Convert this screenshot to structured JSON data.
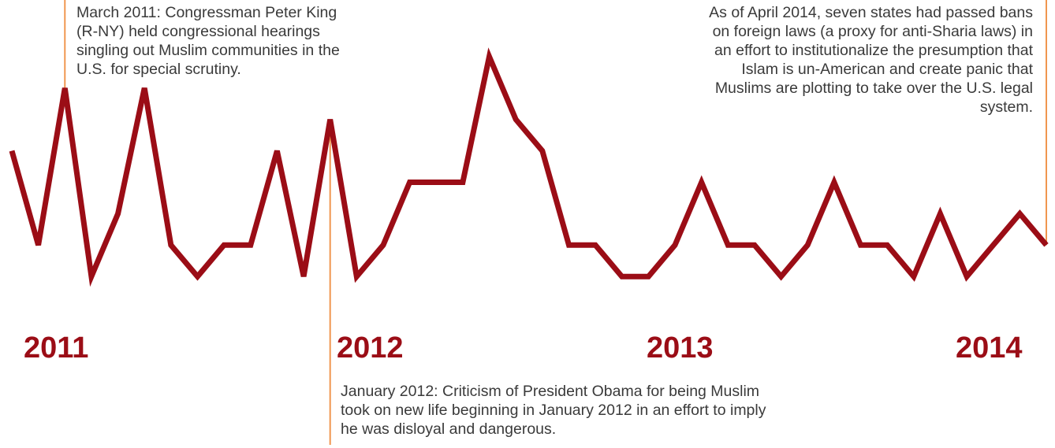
{
  "chart_data": {
    "type": "line",
    "colors": {
      "line": "#9b0d16",
      "marker_line": "#f0964f",
      "text": "#3a3a3a",
      "year": "#9b0d16"
    },
    "grid": false,
    "values": [
      6,
      3,
      8,
      2,
      4,
      8,
      3,
      2,
      3,
      3,
      6,
      2,
      7,
      2,
      3,
      5,
      5,
      5,
      9,
      7,
      6,
      3,
      3,
      2,
      2,
      3,
      5,
      3,
      3,
      2,
      3,
      5,
      3,
      3,
      2,
      4,
      2,
      3,
      4,
      3
    ],
    "ylim": [
      0,
      10
    ],
    "year_labels": [
      {
        "label": "2011",
        "index": 2
      },
      {
        "label": "2012",
        "index": 12
      },
      {
        "label": "2013",
        "index": 24
      },
      {
        "label": "2014",
        "index": 36
      }
    ],
    "annotations": [
      {
        "index": 2,
        "text": "March 2011: Congressman Peter King (R-NY) held congressional hearings singling out Muslim communities in the U.S. for special scrutiny."
      },
      {
        "index": 12,
        "text": "January 2012: Criticism of President Obama for being Muslim took on new life beginning in January 2012 in an effort to imply he was disloyal and dangerous."
      },
      {
        "index": 39,
        "text": "As of April 2014, seven states had passed bans on foreign laws (a proxy for anti-Sharia laws) in an effort to institutionalize the presumption that Islam is un-American and create panic that Muslims are plotting to take over the U.S. legal system."
      }
    ]
  }
}
